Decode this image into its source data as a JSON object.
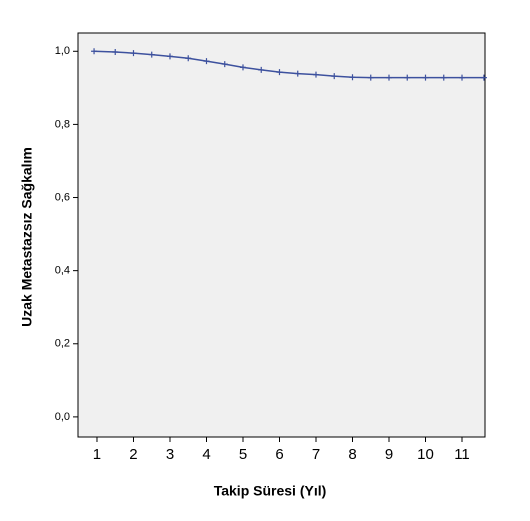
{
  "chart_data": {
    "type": "line",
    "x_label": "Takip Süresi (Yıl)",
    "y_label": "Uzak Metastazsız Sağkalım",
    "x": [
      0.92,
      1.5,
      2.0,
      2.5,
      3.0,
      3.5,
      4.0,
      4.5,
      5.0,
      5.5,
      6.0,
      6.5,
      7.0,
      7.5,
      8.0,
      8.5,
      9.0,
      9.5,
      10.0,
      10.5,
      11.0,
      11.6
    ],
    "series": [
      {
        "name": "Uzak Metastazsız Sağkalım",
        "color": "#3d519e",
        "values": [
          1.0,
          0.998,
          0.995,
          0.991,
          0.986,
          0.981,
          0.973,
          0.965,
          0.956,
          0.949,
          0.943,
          0.939,
          0.936,
          0.932,
          0.929,
          0.928,
          0.928,
          0.928,
          0.928,
          0.928,
          0.928,
          0.928
        ]
      }
    ],
    "xlim": [
      0.48,
      11.63
    ],
    "ylim": [
      -0.055,
      1.05
    ],
    "xticks": [
      1,
      2,
      3,
      4,
      5,
      6,
      7,
      8,
      9,
      10,
      11
    ],
    "yticks": [
      {
        "value": 0,
        "label": "0,0"
      },
      {
        "value": 0.2,
        "label": "0,2"
      },
      {
        "value": 0.4,
        "label": "0,4"
      },
      {
        "value": 0.6,
        "label": "0,6"
      },
      {
        "value": 0.8,
        "label": "0,8"
      },
      {
        "value": 1,
        "label": "1,0"
      }
    ],
    "grid": false
  }
}
